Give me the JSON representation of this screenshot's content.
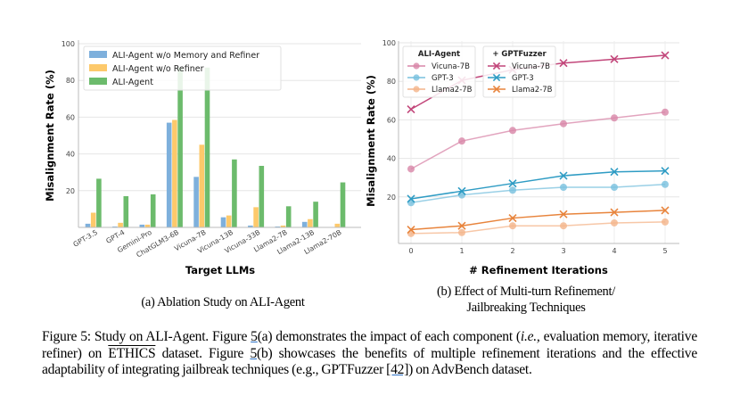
{
  "figure": {
    "caption_a": "(a) Ablation Study on ALI-Agent",
    "caption_b_line1": "(b) Effect of Multi-turn Refinement/",
    "caption_b_line2": "Jailbreaking Techniques",
    "main_caption": {
      "label": "Figure 5:",
      "s1": " Study on ALI-Agent.  Figure ",
      "ref1": "5",
      "s2": "(a) demonstrates the impact of each component (",
      "ie": "i.e.,",
      "s3": " evaluation memory, iterative refiner) on ",
      "ethics": "ETHICS",
      "s4": " dataset.  Figure ",
      "ref2": "5",
      "s5": "(b) showcases the benefits of multiple refinement iterations and the effective adaptability of integrating jailbreak techniques (e.g., GPTFuzzer ",
      "ref3": "[42]",
      "s6": ") on AdvBench dataset."
    }
  },
  "chart_data": [
    {
      "type": "bar",
      "title": "",
      "xlabel": "Target LLMs",
      "ylabel": "Misalignment Rate (%)",
      "ylim": [
        0,
        100
      ],
      "yticks": [
        20,
        40,
        60,
        80,
        100
      ],
      "grid": true,
      "legend_position": "top-left",
      "categories": [
        "GPT-3.5",
        "GPT-4",
        "Gemini-Pro",
        "ChatGLM3-6B",
        "Vicuna-7B",
        "Vicuna-13B",
        "Vicuna-33B",
        "Llama2-7B",
        "Llama2-13B",
        "Llama2-70B"
      ],
      "series": [
        {
          "name": "ALI-Agent w/o Memory and Refiner",
          "color": "#7eb0dc",
          "values": [
            2,
            0.5,
            1.5,
            57,
            27.5,
            5.5,
            1,
            0.5,
            3,
            0
          ]
        },
        {
          "name": "ALI-Agent w/o Refiner",
          "color": "#fdc96b",
          "values": [
            8,
            2.5,
            1.5,
            58.5,
            45,
            6.5,
            11,
            1,
            4.5,
            2
          ]
        },
        {
          "name": "ALI-Agent",
          "color": "#6cbb6c",
          "values": [
            26.5,
            17,
            18,
            87,
            87,
            37,
            33.5,
            11.5,
            14,
            24.5
          ]
        }
      ]
    },
    {
      "type": "line",
      "title": "",
      "xlabel": "# Refinement Iterations",
      "ylabel": "Misalignment Rate (%)",
      "x": [
        0,
        1,
        2,
        3,
        4,
        5
      ],
      "ylim": [
        -4,
        100
      ],
      "yticks": [
        20,
        40,
        60,
        80,
        100
      ],
      "grid": true,
      "legend_position": "top-left",
      "legend_groups": [
        "ALI-Agent",
        "+ GPTFuzzer"
      ],
      "series": [
        {
          "name": "Vicuna-7B",
          "group": "ALI-Agent",
          "marker": "circle",
          "color": "#d886a8",
          "values": [
            34.5,
            49,
            54.5,
            58,
            61,
            64
          ]
        },
        {
          "name": "GPT-3",
          "group": "ALI-Agent",
          "marker": "circle",
          "color": "#78c0de",
          "values": [
            17,
            21,
            23.5,
            25,
            25,
            26.5
          ]
        },
        {
          "name": "Llama2-7B",
          "group": "ALI-Agent",
          "marker": "circle",
          "color": "#f4b48a",
          "values": [
            1,
            1.5,
            5,
            5,
            6.5,
            7
          ]
        },
        {
          "name": "Vicuna-7B",
          "group": "+ GPTFuzzer",
          "marker": "x",
          "color": "#c2467a",
          "values": [
            65.5,
            80.5,
            86,
            89.5,
            91.5,
            93.5
          ]
        },
        {
          "name": "GPT-3",
          "group": "+ GPTFuzzer",
          "marker": "x",
          "color": "#2f9cc4",
          "values": [
            19,
            23,
            27,
            31,
            33,
            33.5
          ]
        },
        {
          "name": "Llama2-7B",
          "group": "+ GPTFuzzer",
          "marker": "x",
          "color": "#e8843c",
          "values": [
            3,
            5,
            9,
            11,
            12,
            13
          ]
        }
      ]
    }
  ]
}
